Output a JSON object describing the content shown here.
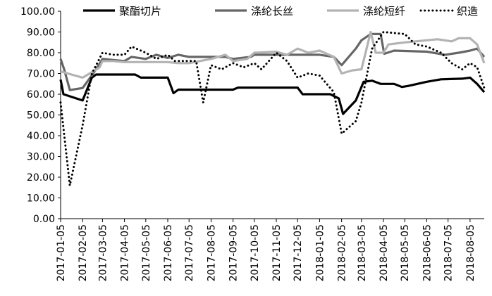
{
  "chart_data": {
    "type": "line",
    "title": "",
    "xlabel": "",
    "ylabel": "",
    "ylim": [
      0,
      100
    ],
    "yticks": [
      "0.00",
      "10.00",
      "20.00",
      "30.00",
      "40.00",
      "50.00",
      "60.00",
      "70.00",
      "80.00",
      "90.00",
      "100.00"
    ],
    "xticks": [
      "2017-01-05",
      "2017-02-05",
      "2017-03-05",
      "2017-04-05",
      "2017-05-05",
      "2017-06-05",
      "2017-07-05",
      "2017-08-05",
      "2017-09-05",
      "2017-10-05",
      "2017-11-05",
      "2017-12-05",
      "2018-01-05",
      "2018-02-05",
      "2018-03-05",
      "2018-04-05",
      "2018-05-05",
      "2018-06-05",
      "2018-07-05",
      "2018-08-05"
    ],
    "xlim": [
      "2017-01-05",
      "2018-08-25"
    ],
    "grid": false,
    "legend": "top",
    "series": [
      {
        "name": "聚酯切片",
        "color": "#000000",
        "style": "solid",
        "points": [
          [
            "2017-01-05",
            67
          ],
          [
            "2017-01-09",
            60
          ],
          [
            "2017-02-05",
            57
          ],
          [
            "2017-02-18",
            68
          ],
          [
            "2017-02-24",
            69.5
          ],
          [
            "2017-04-20",
            69.5
          ],
          [
            "2017-04-28",
            68
          ],
          [
            "2017-06-05",
            68
          ],
          [
            "2017-06-13",
            60.5
          ],
          [
            "2017-06-20",
            62.2
          ],
          [
            "2017-09-05",
            62.2
          ],
          [
            "2017-09-12",
            63.2
          ],
          [
            "2017-12-05",
            63.2
          ],
          [
            "2017-12-12",
            60
          ],
          [
            "2018-01-20",
            60
          ],
          [
            "2018-02-01",
            58
          ],
          [
            "2018-02-07",
            50.5
          ],
          [
            "2018-02-25",
            57
          ],
          [
            "2018-03-08",
            66
          ],
          [
            "2018-03-20",
            66.5
          ],
          [
            "2018-04-01",
            65
          ],
          [
            "2018-04-20",
            65
          ],
          [
            "2018-05-01",
            63.5
          ],
          [
            "2018-05-10",
            64
          ],
          [
            "2018-06-05",
            66
          ],
          [
            "2018-06-25",
            67.2
          ],
          [
            "2018-07-25",
            67.5
          ],
          [
            "2018-08-05",
            68
          ],
          [
            "2018-08-15",
            65
          ],
          [
            "2018-08-25",
            61
          ]
        ]
      },
      {
        "name": "涤纶长丝",
        "color": "#666666",
        "style": "solid",
        "points": [
          [
            "2017-01-05",
            77
          ],
          [
            "2017-01-10",
            72
          ],
          [
            "2017-01-18",
            62
          ],
          [
            "2017-02-05",
            63
          ],
          [
            "2017-02-20",
            70
          ],
          [
            "2017-03-05",
            77
          ],
          [
            "2017-03-20",
            76.5
          ],
          [
            "2017-04-05",
            76
          ],
          [
            "2017-04-15",
            78
          ],
          [
            "2017-05-05",
            77
          ],
          [
            "2017-05-20",
            79
          ],
          [
            "2017-06-05",
            77.5
          ],
          [
            "2017-06-20",
            79
          ],
          [
            "2017-07-05",
            78
          ],
          [
            "2017-08-25",
            78
          ],
          [
            "2017-09-05",
            77
          ],
          [
            "2017-09-30",
            78
          ],
          [
            "2017-10-05",
            79
          ],
          [
            "2017-11-05",
            79
          ],
          [
            "2017-12-05",
            79
          ],
          [
            "2018-01-05",
            79
          ],
          [
            "2018-01-25",
            78
          ],
          [
            "2018-02-05",
            74
          ],
          [
            "2018-02-25",
            82
          ],
          [
            "2018-03-05",
            86
          ],
          [
            "2018-03-18",
            89
          ],
          [
            "2018-04-01",
            89
          ],
          [
            "2018-04-06",
            79.5
          ],
          [
            "2018-04-20",
            81
          ],
          [
            "2018-06-05",
            80.5
          ],
          [
            "2018-07-01",
            79
          ],
          [
            "2018-07-20",
            80
          ],
          [
            "2018-08-05",
            81
          ],
          [
            "2018-08-15",
            82
          ],
          [
            "2018-08-25",
            78
          ]
        ]
      },
      {
        "name": "涤纶短纤",
        "color": "#b3b3b3",
        "style": "solid",
        "points": [
          [
            "2017-01-05",
            71
          ],
          [
            "2017-01-15",
            70
          ],
          [
            "2017-02-05",
            68
          ],
          [
            "2017-02-20",
            71
          ],
          [
            "2017-03-01",
            73
          ],
          [
            "2017-03-05",
            76
          ],
          [
            "2017-03-20",
            76
          ],
          [
            "2017-04-05",
            75.5
          ],
          [
            "2017-05-05",
            75.5
          ],
          [
            "2017-06-05",
            75.5
          ],
          [
            "2017-06-20",
            75
          ],
          [
            "2017-07-05",
            75
          ],
          [
            "2017-08-05",
            77
          ],
          [
            "2017-08-25",
            79
          ],
          [
            "2017-09-05",
            76
          ],
          [
            "2017-09-25",
            77
          ],
          [
            "2017-10-05",
            80
          ],
          [
            "2017-11-05",
            80.5
          ],
          [
            "2017-11-20",
            79
          ],
          [
            "2017-12-05",
            82
          ],
          [
            "2017-12-20",
            80
          ],
          [
            "2018-01-05",
            81
          ],
          [
            "2018-01-25",
            78
          ],
          [
            "2018-02-05",
            70
          ],
          [
            "2018-02-20",
            71.5
          ],
          [
            "2018-03-05",
            72
          ],
          [
            "2018-03-18",
            90
          ],
          [
            "2018-03-25",
            80
          ],
          [
            "2018-04-05",
            80
          ],
          [
            "2018-04-12",
            84
          ],
          [
            "2018-05-05",
            85
          ],
          [
            "2018-06-05",
            86
          ],
          [
            "2018-06-20",
            86.5
          ],
          [
            "2018-07-10",
            85.5
          ],
          [
            "2018-07-20",
            87
          ],
          [
            "2018-08-05",
            87
          ],
          [
            "2018-08-15",
            84
          ],
          [
            "2018-08-25",
            75
          ]
        ]
      },
      {
        "name": "织造",
        "color": "#000000",
        "style": "dotted",
        "points": [
          [
            "2017-01-05",
            56
          ],
          [
            "2017-01-18",
            16
          ],
          [
            "2017-02-05",
            45
          ],
          [
            "2017-02-18",
            70
          ],
          [
            "2017-03-05",
            80
          ],
          [
            "2017-03-20",
            79
          ],
          [
            "2017-04-05",
            79
          ],
          [
            "2017-04-15",
            83
          ],
          [
            "2017-05-05",
            80
          ],
          [
            "2017-05-20",
            77
          ],
          [
            "2017-06-05",
            79
          ],
          [
            "2017-06-15",
            76
          ],
          [
            "2017-07-15",
            76
          ],
          [
            "2017-07-25",
            56
          ],
          [
            "2017-08-05",
            74
          ],
          [
            "2017-08-20",
            72
          ],
          [
            "2017-09-05",
            75
          ],
          [
            "2017-09-20",
            73
          ],
          [
            "2017-10-05",
            75
          ],
          [
            "2017-10-15",
            72
          ],
          [
            "2017-11-05",
            80
          ],
          [
            "2017-11-20",
            76
          ],
          [
            "2017-12-05",
            68
          ],
          [
            "2017-12-20",
            70
          ],
          [
            "2018-01-05",
            69
          ],
          [
            "2018-01-25",
            61
          ],
          [
            "2018-02-05",
            41
          ],
          [
            "2018-02-25",
            47
          ],
          [
            "2018-03-05",
            56
          ],
          [
            "2018-03-20",
            82
          ],
          [
            "2018-04-05",
            90
          ],
          [
            "2018-05-05",
            89
          ],
          [
            "2018-05-20",
            84
          ],
          [
            "2018-06-05",
            83
          ],
          [
            "2018-06-25",
            80
          ],
          [
            "2018-07-10",
            75
          ],
          [
            "2018-07-25",
            72
          ],
          [
            "2018-08-05",
            75
          ],
          [
            "2018-08-15",
            73
          ],
          [
            "2018-08-25",
            63
          ]
        ]
      }
    ]
  }
}
